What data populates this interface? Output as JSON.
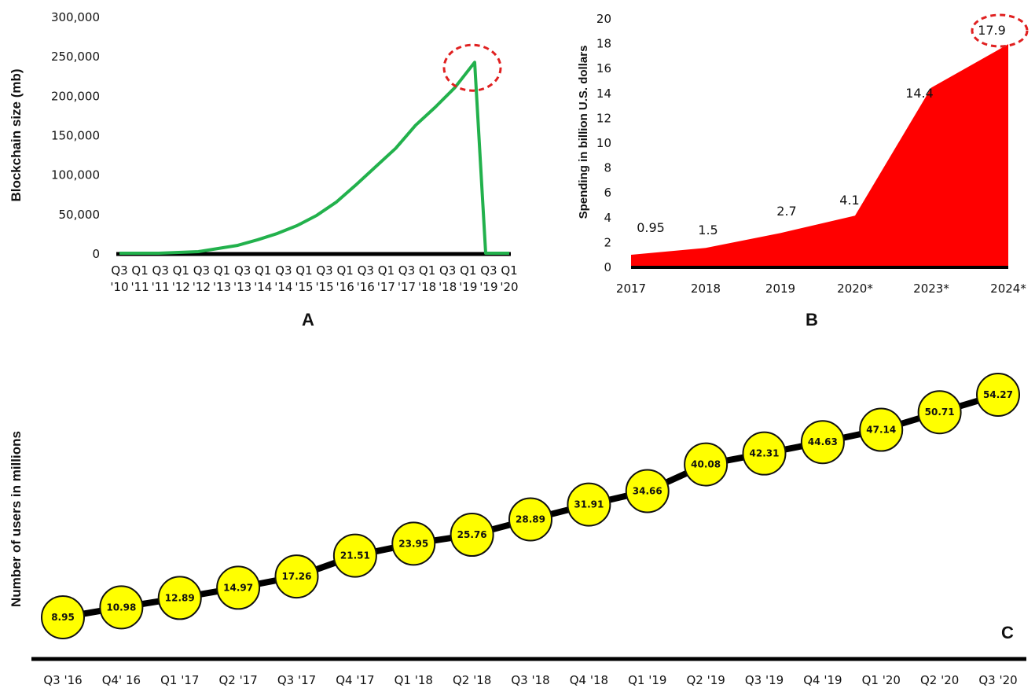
{
  "chart_data": [
    {
      "panel": "A",
      "type": "line",
      "ylabel": "Blockchain size (mb)",
      "ylim": [
        0,
        300000
      ],
      "yticks": [
        "0",
        "50,000",
        "100,000",
        "150,000",
        "200,000",
        "250,000",
        "300,000"
      ],
      "xtick_top": [
        "Q3",
        "Q1",
        "Q3",
        "Q1",
        "Q3",
        "Q1",
        "Q3",
        "Q1",
        "Q3",
        "Q1",
        "Q3",
        "Q1",
        "Q3",
        "Q1",
        "Q3",
        "Q1",
        "Q3",
        "Q1",
        "Q3",
        "Q1"
      ],
      "xtick_bottom": [
        "'10",
        "'11",
        "'11",
        "'12",
        "'12",
        "'13",
        "'13",
        "'14",
        "'14",
        "'15",
        "'15",
        "'16",
        "'16",
        "'17",
        "'17",
        "'18",
        "'18",
        "'19",
        "'19",
        "'20"
      ],
      "series": [
        {
          "color": "#22b14c",
          "values": [
            0,
            0,
            0,
            1000,
            2000,
            6000,
            10000,
            17000,
            25000,
            35000,
            48000,
            65000,
            87000,
            110000,
            133000,
            162000,
            185000,
            210000,
            242000,
            0,
            0
          ]
        }
      ],
      "annotation": "circled peak"
    },
    {
      "panel": "B",
      "type": "area",
      "ylabel": "Spending in billion U.S. dollars",
      "ylim": [
        0,
        20
      ],
      "yticks": [
        "0",
        "2",
        "4",
        "6",
        "8",
        "10",
        "12",
        "14",
        "16",
        "18",
        "20"
      ],
      "categories": [
        "2017",
        "2018",
        "2019",
        "2020*",
        "2023*",
        "2024*"
      ],
      "values": [
        0.95,
        1.5,
        2.7,
        4.1,
        14.4,
        17.9
      ],
      "data_labels": [
        "0.95",
        "1.5",
        "2.7",
        "4.1",
        "14.4",
        "17.9"
      ],
      "color": "#ff0000",
      "annotation": "circled 17.9"
    },
    {
      "panel": "C",
      "type": "line",
      "ylabel": "Number of users in millions",
      "categories": [
        "Q3 '16",
        "Q4' 16",
        "Q1 '17",
        "Q2 '17",
        "Q3 '17",
        "Q4 '17",
        "Q1 '18",
        "Q2 '18",
        "Q3 '18",
        "Q4 '18",
        "Q1 '19",
        "Q2 '19",
        "Q3 '19",
        "Q4 '19",
        "Q1 '20",
        "Q2 '20",
        "Q3 '20"
      ],
      "values": [
        8.95,
        10.98,
        12.89,
        14.97,
        17.26,
        21.51,
        23.95,
        25.76,
        28.89,
        31.91,
        34.66,
        40.08,
        42.31,
        44.63,
        47.14,
        50.71,
        54.27
      ],
      "data_labels": [
        "8.95",
        "10.98",
        "12.89",
        "14.97",
        "17.26",
        "21.51",
        "23.95",
        "25.76",
        "28.89",
        "31.91",
        "34.66",
        "40.08",
        "42.31",
        "44.63",
        "47.14",
        "50.71",
        "54.27"
      ],
      "marker_color": "#ffff00",
      "line_color": "#000000"
    }
  ],
  "panel_labels": {
    "a": "A",
    "b": "B",
    "c": "C"
  }
}
